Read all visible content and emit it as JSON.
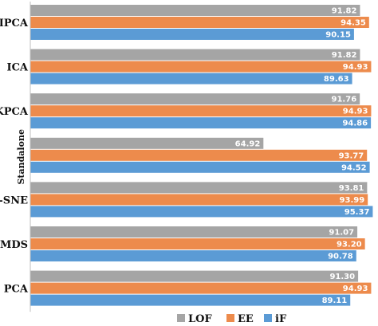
{
  "chart_data": {
    "type": "bar",
    "orientation": "horizontal",
    "categories": [
      "IPCA",
      "ICA",
      "KPCA",
      "Standalone",
      "t-SNE",
      "MDS",
      "PCA"
    ],
    "series": [
      {
        "name": "LOF",
        "color": "#a5a5a5",
        "values": [
          91.82,
          91.82,
          91.76,
          64.92,
          93.81,
          91.07,
          91.3
        ]
      },
      {
        "name": "EE",
        "color": "#ed8b4c",
        "values": [
          94.35,
          94.93,
          94.93,
          93.77,
          93.99,
          93.2,
          94.93
        ]
      },
      {
        "name": "iF",
        "color": "#5b9bd5",
        "values": [
          90.15,
          89.63,
          94.86,
          94.52,
          95.37,
          90.78,
          89.11
        ]
      }
    ],
    "value_labels": [
      [
        "91.82",
        "91.82",
        "91.76",
        "64.92",
        "93.81",
        "91.07",
        "91.30"
      ],
      [
        "94.35",
        "94.93",
        "94.93",
        "93.77",
        "93.99",
        "93.20",
        "94.93"
      ],
      [
        "90.15",
        "89.63",
        "94.86",
        "94.52",
        "95.37",
        "90.78",
        "89.11"
      ]
    ],
    "xlim": [
      0,
      95.5
    ],
    "grid": false,
    "legend_position": "bottom"
  }
}
